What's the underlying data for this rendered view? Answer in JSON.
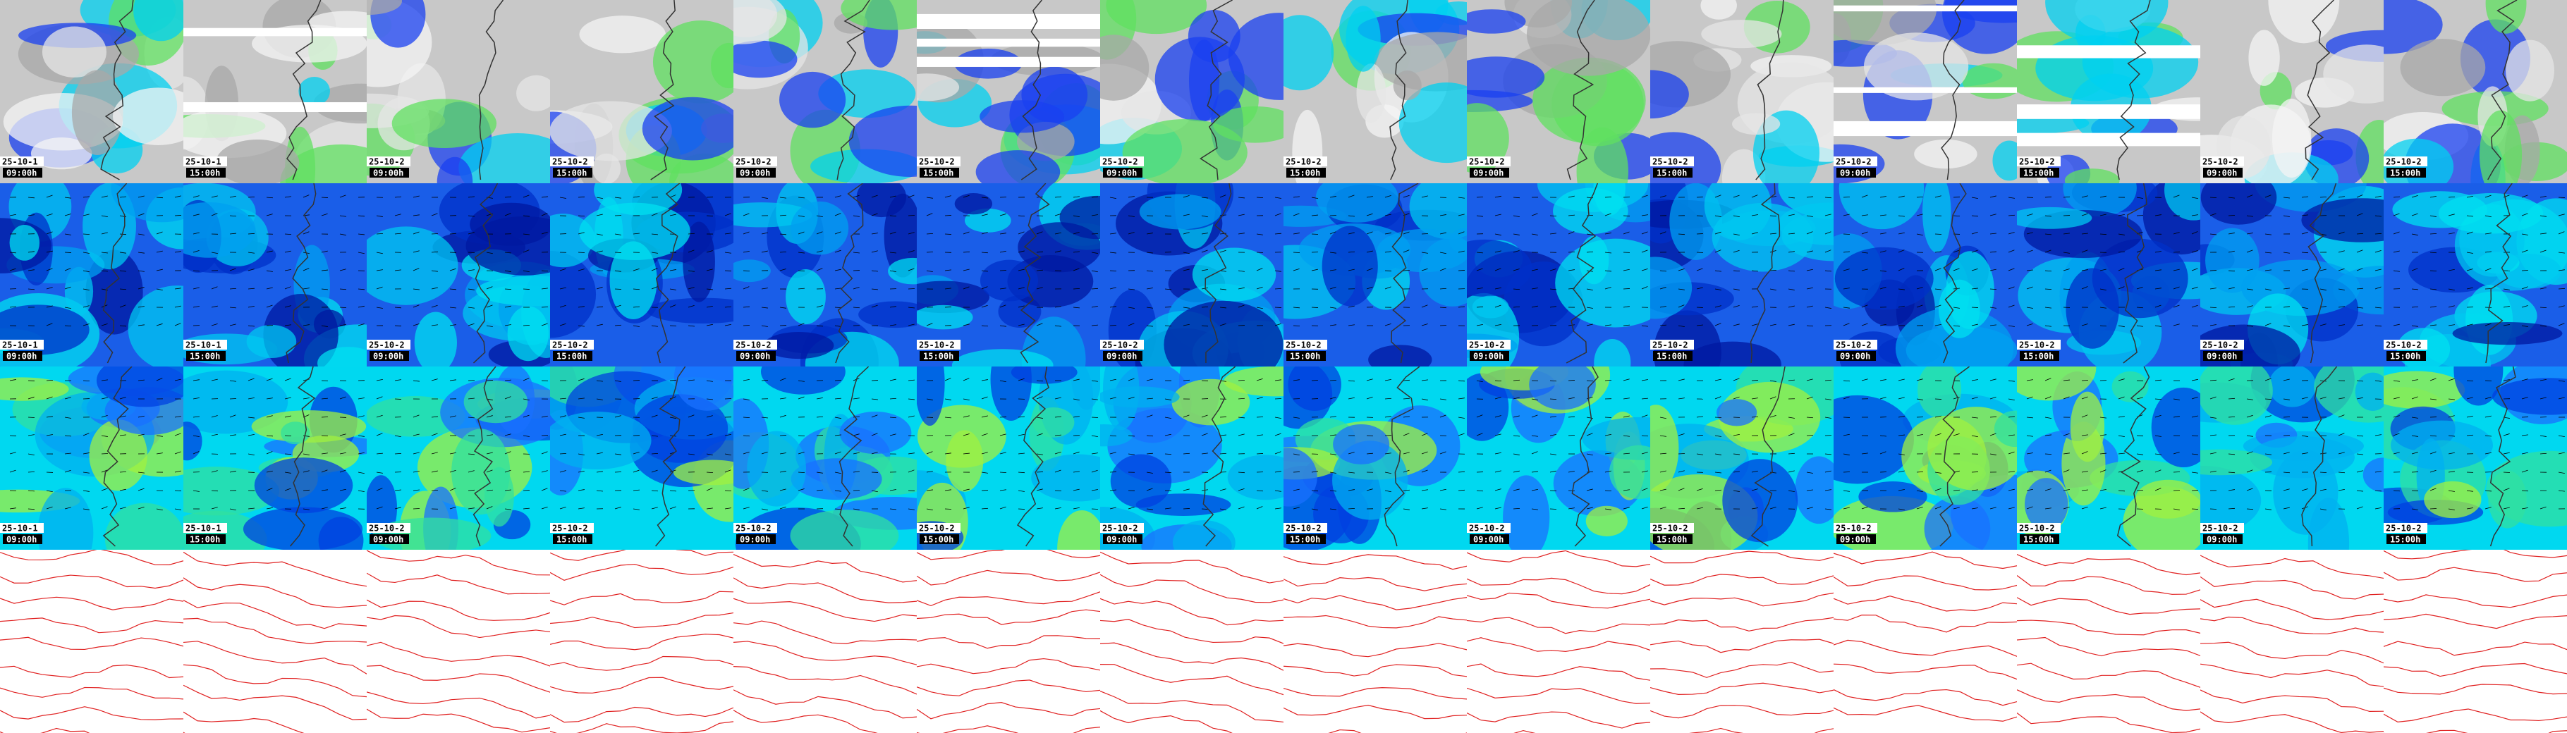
{
  "columns": [
    {
      "date": "25-10-1",
      "time": "09:00h"
    },
    {
      "date": "25-10-1",
      "time": "15:00h"
    },
    {
      "date": "25-10-2",
      "time": "09:00h"
    },
    {
      "date": "25-10-2",
      "time": "15:00h"
    },
    {
      "date": "25-10-2",
      "time": "09:00h"
    },
    {
      "date": "25-10-2",
      "time": "15:00h"
    },
    {
      "date": "25-10-2",
      "time": "09:00h"
    },
    {
      "date": "25-10-2",
      "time": "15:00h"
    },
    {
      "date": "25-10-2",
      "time": "09:00h"
    },
    {
      "date": "25-10-2",
      "time": "15:00h"
    },
    {
      "date": "25-10-2",
      "time": "09:00h"
    },
    {
      "date": "25-10-2",
      "time": "15:00h"
    },
    {
      "date": "25-10-2",
      "time": "09:00h"
    },
    {
      "date": "25-10-2",
      "time": "15:00h"
    }
  ]
}
